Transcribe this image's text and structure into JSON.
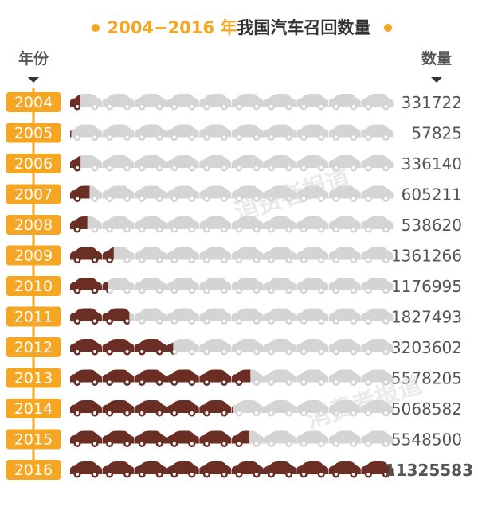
{
  "chart_data": {
    "type": "bar",
    "title_years": "2004−2016 年",
    "title_text": "我国汽车召回数量",
    "xlabel": "年份",
    "ylabel": "数量",
    "watermark": "消费者报道",
    "categories": [
      "2004",
      "2005",
      "2006",
      "2007",
      "2008",
      "2009",
      "2010",
      "2011",
      "2012",
      "2013",
      "2014",
      "2015",
      "2016"
    ],
    "values": [
      331722,
      57825,
      336140,
      605211,
      538620,
      1361266,
      1176995,
      1827493,
      3203602,
      5578205,
      5068582,
      5548500,
      11325583
    ],
    "highlight_value_index": 12,
    "units_per_car": 1000000,
    "cars_per_row": 10,
    "colors": {
      "accent": "#f5a623",
      "filled": "#6b2e24",
      "empty": "#d4d4d4",
      "text": "#555555",
      "title_dark": "#333333"
    }
  }
}
